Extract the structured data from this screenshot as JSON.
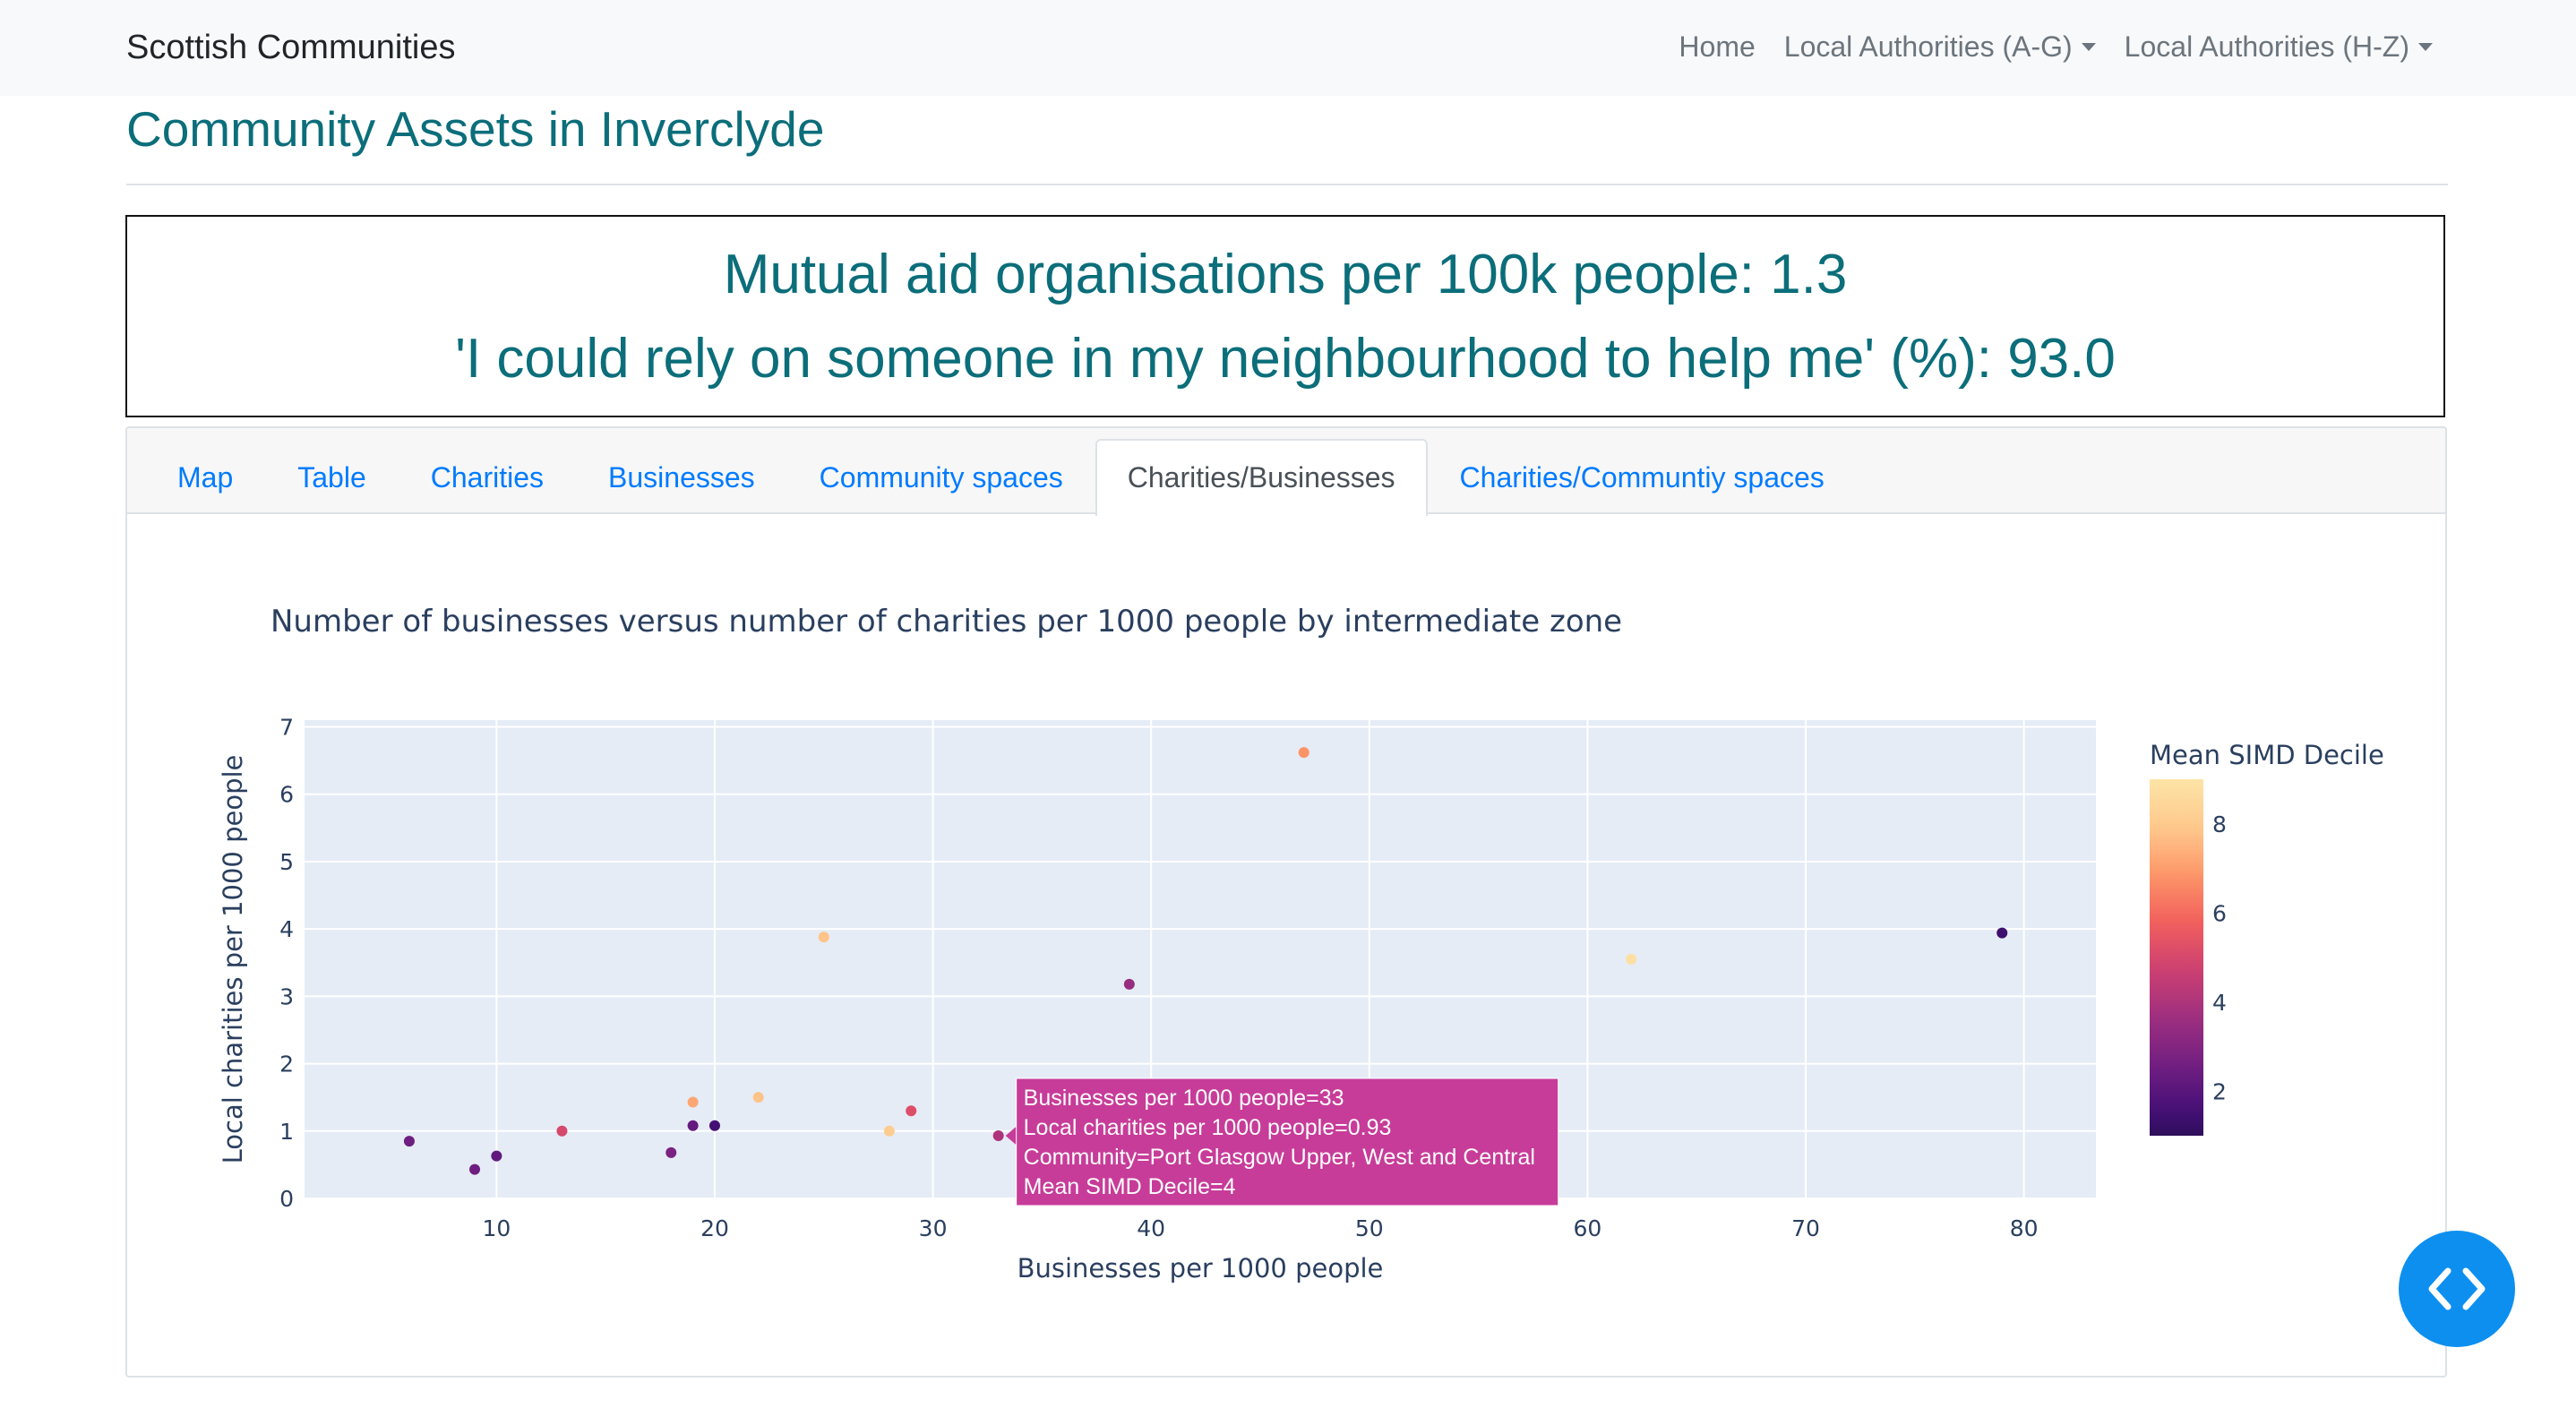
{
  "navbar": {
    "brand": "Scottish Communities",
    "links": [
      "Home",
      "Local Authorities (A-G)",
      "Local Authorities (H-Z)"
    ]
  },
  "page": {
    "title": "Community Assets in Inverclyde",
    "headline1": "Mutual aid organisations per 100k people: 1.3",
    "headline2": "'I could rely on someone in my neighbourhood to help me' (%): 93.0"
  },
  "tabs": [
    {
      "label": "Map",
      "active": false
    },
    {
      "label": "Table",
      "active": false
    },
    {
      "label": "Charities",
      "active": false
    },
    {
      "label": "Businesses",
      "active": false
    },
    {
      "label": "Community spaces",
      "active": false
    },
    {
      "label": "Charities/Businesses",
      "active": true
    },
    {
      "label": "Charities/Communtiy spaces",
      "active": false
    }
  ],
  "colors": {
    "accent": "#0b6e7a",
    "link": "#007bff",
    "plot_bg": "#e5ecf6",
    "fab": "#0d8ff0"
  },
  "chart_data": {
    "type": "scatter",
    "title": "Number of businesses versus number of charities per 1000 people by intermediate zone",
    "xlabel": "Businesses per 1000 people",
    "ylabel": "Local charities per 1000 people",
    "xlim": [
      1.2,
      83.3
    ],
    "ylim": [
      0,
      7.1
    ],
    "xticks": [
      10,
      20,
      30,
      40,
      50,
      60,
      70,
      80
    ],
    "yticks": [
      0,
      1,
      2,
      3,
      4,
      5,
      6,
      7
    ],
    "grid": true,
    "colorbar": {
      "title": "Mean SIMD Decile",
      "range": [
        1,
        9
      ],
      "ticks": [
        2,
        4,
        6,
        8
      ],
      "colorscale": "magma"
    },
    "points": [
      {
        "x": 6,
        "y": 0.85,
        "decile": 2.5
      },
      {
        "x": 9,
        "y": 0.43,
        "decile": 2.5
      },
      {
        "x": 10,
        "y": 0.63,
        "decile": 2.2
      },
      {
        "x": 13,
        "y": 1.0,
        "decile": 5.0
      },
      {
        "x": 18,
        "y": 0.68,
        "decile": 2.8
      },
      {
        "x": 19,
        "y": 1.08,
        "decile": 2.3
      },
      {
        "x": 19,
        "y": 1.43,
        "decile": 7.2
      },
      {
        "x": 20,
        "y": 1.08,
        "decile": 1.5
      },
      {
        "x": 22,
        "y": 1.5,
        "decile": 7.8
      },
      {
        "x": 25,
        "y": 3.88,
        "decile": 7.8
      },
      {
        "x": 28,
        "y": 1.0,
        "decile": 8.0
      },
      {
        "x": 29,
        "y": 1.3,
        "decile": 5.2
      },
      {
        "x": 33,
        "y": 0.93,
        "decile": 4
      },
      {
        "x": 39,
        "y": 3.18,
        "decile": 3.5
      },
      {
        "x": 47,
        "y": 6.62,
        "decile": 6.8
      },
      {
        "x": 62,
        "y": 3.55,
        "decile": 8.8
      },
      {
        "x": 79,
        "y": 3.94,
        "decile": 1.4
      }
    ],
    "hover": {
      "lines": [
        "Businesses per 1000 people=33",
        "Local charities per 1000 people=0.93",
        "Community=Port Glasgow Upper, West and Central",
        "Mean SIMD Decile=4"
      ],
      "color": "#c73c99"
    }
  }
}
